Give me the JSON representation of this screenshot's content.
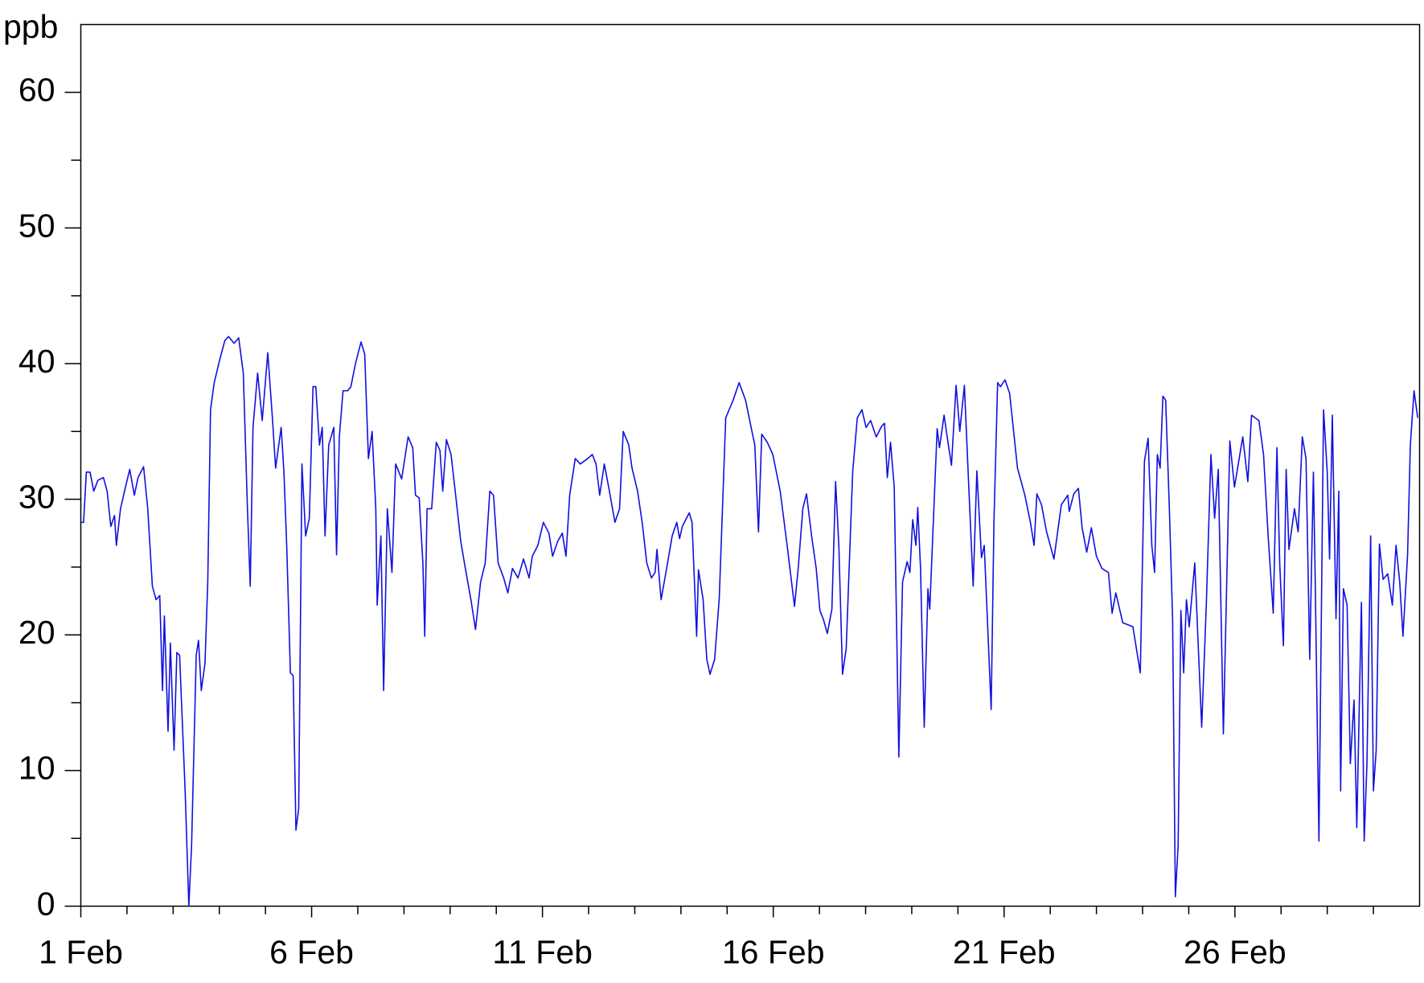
{
  "chart_data": {
    "type": "line",
    "y_label": "ppb",
    "color": "#1010e0",
    "xlim": [
      0,
      29
    ],
    "ylim": [
      0,
      65
    ],
    "xticks": [
      {
        "value": 0,
        "label": "1 Feb"
      },
      {
        "value": 5,
        "label": "6 Feb"
      },
      {
        "value": 10,
        "label": "11 Feb"
      },
      {
        "value": 15,
        "label": "16 Feb"
      },
      {
        "value": 20,
        "label": "21 Feb"
      },
      {
        "value": 25,
        "label": "26 Feb"
      }
    ],
    "xminorticks": [
      1,
      2,
      3,
      4,
      6,
      7,
      8,
      9,
      11,
      12,
      13,
      14,
      16,
      17,
      18,
      19,
      21,
      22,
      23,
      24,
      26,
      27,
      28
    ],
    "yticks": [
      0,
      10,
      20,
      30,
      40,
      50,
      60
    ],
    "yminorticks": [
      5,
      15,
      25,
      35,
      45,
      55
    ],
    "x": [
      0,
      0.06,
      0.12,
      0.2,
      0.28,
      0.37,
      0.49,
      0.57,
      0.65,
      0.73,
      0.77,
      0.86,
      0.96,
      1.06,
      1.16,
      1.24,
      1.36,
      1.45,
      1.55,
      1.63,
      1.71,
      1.77,
      1.81,
      1.89,
      1.94,
      2.02,
      2.08,
      2.14,
      2.26,
      2.34,
      2.4,
      2.5,
      2.55,
      2.61,
      2.69,
      2.75,
      2.81,
      2.89,
      3.01,
      3.12,
      3.2,
      3.32,
      3.42,
      3.52,
      3.61,
      3.67,
      3.73,
      3.83,
      3.93,
      4.05,
      4.15,
      4.22,
      4.34,
      4.4,
      4.46,
      4.54,
      4.6,
      4.66,
      4.72,
      4.79,
      4.87,
      4.95,
      5.03,
      5.09,
      5.17,
      5.23,
      5.29,
      5.37,
      5.48,
      5.54,
      5.6,
      5.68,
      5.78,
      5.85,
      5.95,
      6.07,
      6.15,
      6.23,
      6.31,
      6.39,
      6.42,
      6.5,
      6.56,
      6.64,
      6.74,
      6.82,
      6.95,
      7.09,
      7.19,
      7.25,
      7.33,
      7.41,
      7.45,
      7.5,
      7.6,
      7.7,
      7.78,
      7.84,
      7.92,
      8.02,
      8.11,
      8.23,
      8.33,
      8.45,
      8.55,
      8.66,
      8.76,
      8.86,
      8.94,
      9.04,
      9.16,
      9.25,
      9.35,
      9.47,
      9.59,
      9.71,
      9.78,
      9.9,
      10.02,
      10.14,
      10.22,
      10.33,
      10.43,
      10.51,
      10.59,
      10.71,
      10.82,
      10.98,
      11.08,
      11.16,
      11.24,
      11.34,
      11.45,
      11.57,
      11.67,
      11.75,
      11.87,
      11.94,
      12.06,
      12.16,
      12.26,
      12.36,
      12.44,
      12.48,
      12.57,
      12.69,
      12.81,
      12.91,
      12.97,
      13.03,
      13.18,
      13.24,
      13.34,
      13.38,
      13.48,
      13.56,
      13.63,
      13.73,
      13.83,
      13.97,
      14.13,
      14.26,
      14.4,
      14.52,
      14.6,
      14.68,
      14.75,
      14.87,
      14.99,
      15.15,
      15.3,
      15.46,
      15.54,
      15.64,
      15.72,
      15.83,
      15.93,
      16.01,
      16.09,
      16.17,
      16.27,
      16.35,
      16.42,
      16.5,
      16.58,
      16.72,
      16.82,
      16.92,
      17.01,
      17.11,
      17.23,
      17.35,
      17.41,
      17.47,
      17.54,
      17.62,
      17.72,
      17.8,
      17.9,
      17.96,
      18.02,
      18.09,
      18.13,
      18.19,
      18.27,
      18.35,
      18.39,
      18.45,
      18.55,
      18.6,
      18.7,
      18.78,
      18.86,
      18.96,
      19.04,
      19.14,
      19.23,
      19.33,
      19.41,
      19.51,
      19.57,
      19.63,
      19.72,
      19.78,
      19.86,
      19.92,
      20.02,
      20.12,
      20.29,
      20.45,
      20.57,
      20.65,
      20.71,
      20.81,
      20.92,
      21.08,
      21.24,
      21.38,
      21.41,
      21.51,
      21.61,
      21.69,
      21.79,
      21.89,
      22,
      22.12,
      22.26,
      22.34,
      22.42,
      22.57,
      22.79,
      22.95,
      23.04,
      23.12,
      23.2,
      23.26,
      23.32,
      23.38,
      23.44,
      23.5,
      23.58,
      23.65,
      23.71,
      23.77,
      23.83,
      23.89,
      23.95,
      24.01,
      24.13,
      24.28,
      24.38,
      24.48,
      24.56,
      24.64,
      24.75,
      24.89,
      24.99,
      25.17,
      25.28,
      25.36,
      25.52,
      25.62,
      25.72,
      25.83,
      25.91,
      25.97,
      26.05,
      26.11,
      26.17,
      26.29,
      26.37,
      26.46,
      26.54,
      26.62,
      26.7,
      26.74,
      26.82,
      26.92,
      27,
      27.05,
      27.11,
      27.19,
      27.25,
      27.29,
      27.35,
      27.43,
      27.5,
      27.58,
      27.64,
      27.74,
      27.8,
      27.86,
      27.94,
      28,
      28.06,
      28.13,
      28.21,
      28.31,
      28.41,
      28.49,
      28.57,
      28.64,
      28.74,
      28.8,
      28.88,
      28.96
    ],
    "values": [
      28.3,
      28.3,
      32,
      32,
      30.6,
      31.4,
      31.6,
      30.6,
      28,
      28.8,
      26.6,
      29.3,
      30.8,
      32.2,
      30.3,
      31.6,
      32.4,
      29.3,
      23.6,
      22.6,
      22.9,
      15.9,
      21.4,
      12.9,
      19.4,
      11.5,
      18.7,
      18.5,
      8.5,
      0,
      4.5,
      18.5,
      19.6,
      15.9,
      17.9,
      23.9,
      36.6,
      38.6,
      40.3,
      41.7,
      42,
      41.5,
      41.9,
      39.3,
      29.3,
      23.6,
      35.3,
      39.3,
      35.8,
      40.8,
      36,
      32.3,
      35.3,
      32,
      26.6,
      17.2,
      17,
      5.6,
      7.2,
      32.6,
      27.3,
      28.6,
      38.3,
      38.3,
      34,
      35.3,
      27.3,
      34,
      35.3,
      25.9,
      34.6,
      38,
      38,
      38.3,
      40,
      41.6,
      40.7,
      33,
      35,
      29.3,
      22.2,
      27.3,
      15.9,
      29.3,
      24.6,
      32.6,
      31.5,
      34.6,
      33.8,
      30.3,
      30.1,
      25.3,
      19.9,
      29.3,
      29.3,
      34.2,
      33.6,
      30.6,
      34.4,
      33.3,
      30.6,
      26.9,
      24.9,
      22.6,
      20.4,
      23.9,
      25.3,
      30.6,
      30.3,
      25.3,
      24.2,
      23.1,
      24.9,
      24.2,
      25.6,
      24.2,
      25.8,
      26.6,
      28.3,
      27.5,
      25.8,
      26.9,
      27.5,
      25.8,
      30.3,
      33,
      32.6,
      33,
      33.3,
      32.6,
      30.3,
      32.6,
      30.6,
      28.3,
      29.3,
      35,
      34,
      32.3,
      30.6,
      28.3,
      25.3,
      24.2,
      24.6,
      26.3,
      22.6,
      24.9,
      27.3,
      28.3,
      27.1,
      28,
      29,
      28.3,
      19.9,
      24.8,
      22.6,
      18.2,
      17.1,
      18.2,
      22.7,
      36,
      37.3,
      38.6,
      37.3,
      35.3,
      34,
      27.6,
      34.8,
      34.2,
      33.3,
      30.6,
      26.6,
      22.1,
      24.9,
      29.3,
      30.4,
      27.3,
      24.9,
      21.8,
      21.1,
      20.1,
      21.9,
      31.3,
      26.6,
      17.1,
      19,
      32,
      36,
      36.6,
      35.3,
      35.8,
      34.6,
      35.4,
      35.6,
      31.6,
      34.2,
      30.9,
      11,
      23.9,
      25.4,
      24.6,
      28.5,
      26.6,
      29.4,
      24.9,
      13.2,
      23.4,
      21.9,
      26.9,
      35.2,
      33.8,
      36.2,
      34.3,
      32.5,
      38.4,
      35,
      38.4,
      31.3,
      23.6,
      32.1,
      25.7,
      26.6,
      21.8,
      14.5,
      28.3,
      38.6,
      38.3,
      38.8,
      37.8,
      32.3,
      30.3,
      28.3,
      26.6,
      30.4,
      29.6,
      27.6,
      25.6,
      29.6,
      30.3,
      29.1,
      30.4,
      30.8,
      27.9,
      26.1,
      27.9,
      25.8,
      24.9,
      24.6,
      21.6,
      23.1,
      20.9,
      20.6,
      17.2,
      32.8,
      34.5,
      26.6,
      24.6,
      33.3,
      32.3,
      37.6,
      37.3,
      29.3,
      21.2,
      0.7,
      4.5,
      21.8,
      17.2,
      22.6,
      20.6,
      25.3,
      13.2,
      22.2,
      33.3,
      28.6,
      32.2,
      12.7,
      34.3,
      30.9,
      34.6,
      31.3,
      36.2,
      35.8,
      33.3,
      27.3,
      21.6,
      33.8,
      25.3,
      19.2,
      32.2,
      26.3,
      29.3,
      27.6,
      34.6,
      33,
      18.2,
      32,
      23.9,
      4.8,
      36.6,
      32,
      25.6,
      36.2,
      21.2,
      30.6,
      8.5,
      23.4,
      22.2,
      10.5,
      15.2,
      5.8,
      22.4,
      4.8,
      10.5,
      27.3,
      8.5,
      11.5,
      26.7,
      24.1,
      24.5,
      22.2,
      26.6,
      23.9,
      19.9,
      25.9,
      34,
      38,
      36
    ]
  }
}
